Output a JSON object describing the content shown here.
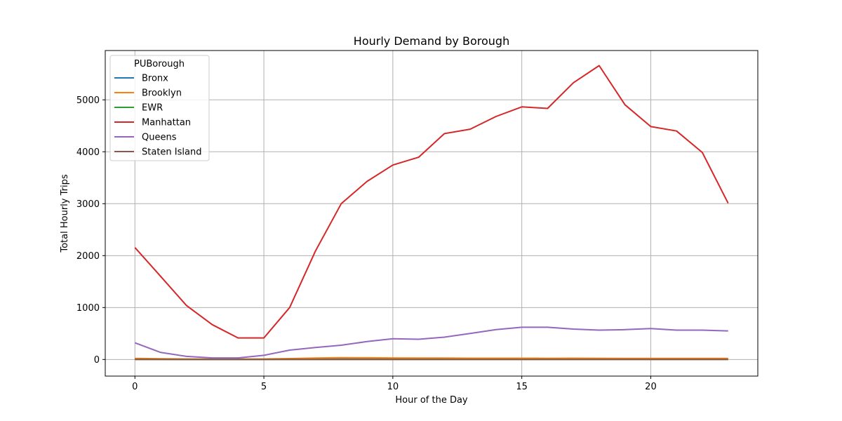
{
  "chart_data": {
    "type": "line",
    "title": "Hourly Demand by Borough",
    "xlabel": "Hour of the Day",
    "ylabel": "Total Hourly Trips",
    "x": [
      0,
      1,
      2,
      3,
      4,
      5,
      6,
      7,
      8,
      9,
      10,
      11,
      12,
      13,
      14,
      15,
      16,
      17,
      18,
      19,
      20,
      21,
      22,
      23
    ],
    "xlim": [
      -1.15,
      24.15
    ],
    "ylim": [
      -320,
      5950
    ],
    "xticks": [
      0,
      5,
      10,
      15,
      20
    ],
    "yticks": [
      0,
      1000,
      2000,
      3000,
      4000,
      5000
    ],
    "grid": true,
    "legend": {
      "title": "PUBorough",
      "placement": "upper-left"
    },
    "series": [
      {
        "name": "Bronx",
        "color": "#1f77b4",
        "values": [
          5,
          4,
          3,
          2,
          2,
          3,
          5,
          8,
          10,
          10,
          9,
          9,
          9,
          8,
          8,
          8,
          7,
          7,
          7,
          6,
          6,
          6,
          6,
          5
        ]
      },
      {
        "name": "Brooklyn",
        "color": "#ff7f0e",
        "values": [
          20,
          15,
          10,
          8,
          7,
          10,
          18,
          28,
          35,
          33,
          30,
          28,
          27,
          25,
          24,
          24,
          23,
          24,
          23,
          22,
          22,
          22,
          22,
          21
        ]
      },
      {
        "name": "EWR",
        "color": "#2ca02c",
        "values": [
          0,
          0,
          0,
          0,
          0,
          0,
          0,
          0,
          0,
          0,
          0,
          0,
          0,
          0,
          0,
          0,
          0,
          0,
          0,
          0,
          0,
          0,
          0,
          0
        ]
      },
      {
        "name": "Manhattan",
        "color": "#d62728",
        "values": [
          2155,
          1600,
          1040,
          670,
          415,
          415,
          1000,
          2090,
          3000,
          3430,
          3745,
          3895,
          4350,
          4435,
          4680,
          4865,
          4835,
          5330,
          5660,
          4905,
          4485,
          4400,
          3985,
          3010
        ]
      },
      {
        "name": "Queens",
        "color": "#9467bd",
        "values": [
          320,
          135,
          60,
          30,
          30,
          80,
          180,
          230,
          275,
          345,
          400,
          390,
          430,
          500,
          575,
          620,
          620,
          585,
          565,
          575,
          595,
          565,
          565,
          550
        ]
      },
      {
        "name": "Staten Island",
        "color": "#8c564b",
        "values": [
          0,
          0,
          0,
          0,
          0,
          0,
          0,
          0,
          0,
          0,
          0,
          0,
          0,
          0,
          0,
          0,
          0,
          0,
          0,
          0,
          0,
          0,
          0,
          0
        ]
      }
    ]
  }
}
